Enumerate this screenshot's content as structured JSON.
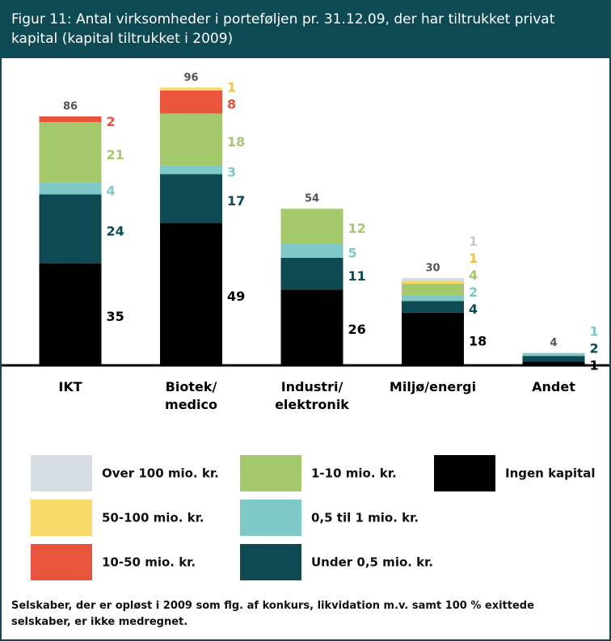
{
  "chart_data": {
    "type": "stacked_bar",
    "title": "Figur 11: Antal virksomheder i porteføljen pr. 31.12.09, der har tiltrukket privat kapital (kapital tiltrukket i 2009)",
    "categories": [
      "IKT",
      "Biotek/\nmedico",
      "Industri/\nelektronik",
      "Miljø/energi",
      "Andet"
    ],
    "totals": [
      86,
      96,
      54,
      30,
      4
    ],
    "series": [
      {
        "name": "Ingen kapital",
        "color": "#000000",
        "values": [
          35,
          49,
          26,
          18,
          1
        ]
      },
      {
        "name": "Under 0,5 mio. kr.",
        "color": "#0d4a54",
        "values": [
          24,
          17,
          11,
          4,
          2
        ]
      },
      {
        "name": "0,5 til 1 mio. kr.",
        "color": "#7ec8c8",
        "values": [
          4,
          3,
          5,
          2,
          1
        ]
      },
      {
        "name": "1-10 mio. kr.",
        "color": "#a3c96a",
        "values": [
          21,
          18,
          12,
          4,
          null
        ]
      },
      {
        "name": "10-50 mio. kr.",
        "color": "#e8543c",
        "values": [
          2,
          8,
          null,
          null,
          null
        ]
      },
      {
        "name": "50-100 mio. kr.",
        "color": "#f7d96a",
        "values": [
          null,
          1,
          null,
          1,
          null
        ]
      },
      {
        "name": "Over 100 mio. kr.",
        "color": "#d6dde3",
        "values": [
          null,
          null,
          null,
          1,
          null
        ]
      }
    ],
    "ylim": [
      0,
      100
    ],
    "note": "Selskaber, der er opløst i 2009 som flg. af konkurs, likvidation m.v. samt 100 % exittede selskaber, er ikke medregnet."
  }
}
